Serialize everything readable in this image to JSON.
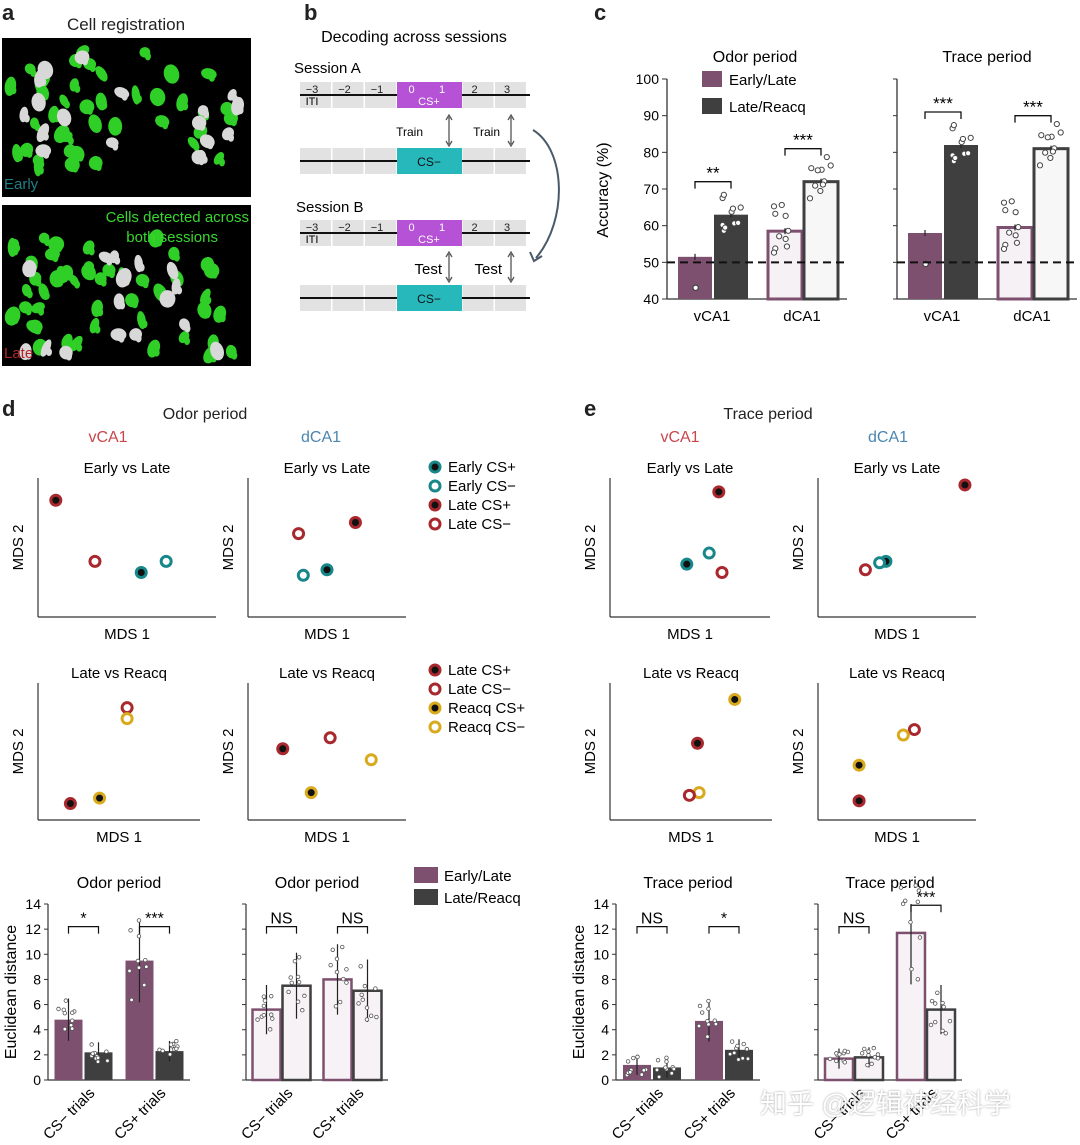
{
  "panels": {
    "a": "a",
    "b": "b",
    "c": "c",
    "d": "d",
    "e": "e"
  },
  "panel_a": {
    "title": "Cell registration",
    "early": "Early",
    "late": "Late",
    "overlay": [
      "Cells detected across",
      "both sessions"
    ]
  },
  "panel_b": {
    "title": "Decoding across sessions",
    "session_a": "Session A",
    "session_b": "Session B",
    "cs_plus": "CS+",
    "cs_minus": "CS−",
    "iti": "ITI",
    "ticks": [
      "−3",
      "−2",
      "−1",
      "0",
      "1",
      "2",
      "3"
    ],
    "train": "Train",
    "test": "Test",
    "colors": {
      "cs_plus": "#b552d6",
      "cs_minus": "#27b8bc"
    }
  },
  "panel_c": {
    "odor_title": "Odor period",
    "trace_title": "Trace period",
    "ylabel": "Accuracy (%)",
    "legend": [
      "Early/Late",
      "Late/Reacq"
    ],
    "colors": {
      "early_late": "#7e5070",
      "late_reacq": "#3f3f3f"
    }
  },
  "panel_d": {
    "title": "Odor period",
    "region_v": "vCA1",
    "region_d": "dCA1",
    "legend_top": [
      "Early CS+",
      "Early CS−",
      "Late CS+",
      "Late CS−"
    ],
    "legend_bottom": [
      "Late CS+",
      "Late CS−",
      "Reacq CS+",
      "Reacq CS−"
    ]
  },
  "panel_e": {
    "title": "Trace period",
    "region_v": "vCA1",
    "region_d": "dCA1"
  },
  "mds": {
    "early_vs_late": "Early vs Late",
    "late_vs_reacq": "Late vs Reacq",
    "x": "MDS 1",
    "y": "MDS 2",
    "colors": {
      "early": "#17878a",
      "late": "#a8282d",
      "reacq": "#d9aa1e"
    }
  },
  "dist": {
    "odor": "Odor period",
    "trace": "Trace period",
    "ylabel": "Euclidean distance",
    "legend": [
      "Early/Late",
      "Late/Reacq"
    ],
    "cats": [
      "CS− trials",
      "CS+ trials"
    ]
  },
  "watermark": "知乎 @逻辑神经科学",
  "chart_data": [
    {
      "type": "bar",
      "title": "Odor period",
      "ylabel": "Accuracy (%)",
      "ylim": [
        40,
        100
      ],
      "yticks": [
        40,
        50,
        60,
        70,
        80,
        90,
        100
      ],
      "categories": [
        "vCA1",
        "dCA1"
      ],
      "series": [
        {
          "name": "Early/Late",
          "values": [
            51.5,
            58.5
          ]
        },
        {
          "name": "Late/Reacq",
          "values": [
            63,
            72
          ]
        }
      ],
      "chance": 50,
      "sig": [
        "**",
        "***"
      ]
    },
    {
      "type": "bar",
      "title": "Trace period",
      "ylim": [
        40,
        100
      ],
      "categories": [
        "vCA1",
        "dCA1"
      ],
      "series": [
        {
          "name": "Early/Late",
          "values": [
            58,
            59.5
          ]
        },
        {
          "name": "Late/Reacq",
          "values": [
            82,
            81
          ]
        }
      ],
      "chance": 50,
      "sig": [
        "***",
        "***"
      ]
    },
    {
      "type": "scatter",
      "title": "Early vs Late",
      "region": "vCA1",
      "period": "Odor period",
      "xlabel": "MDS 1",
      "ylabel": "MDS 2",
      "points": [
        {
          "label": "Late CS+",
          "x": 0.1,
          "y": 0.84
        },
        {
          "label": "Late CS−",
          "x": 0.32,
          "y": 0.4
        },
        {
          "label": "Early CS+",
          "x": 0.58,
          "y": 0.32
        },
        {
          "label": "Early CS−",
          "x": 0.72,
          "y": 0.4
        }
      ]
    },
    {
      "type": "scatter",
      "title": "Early vs Late",
      "region": "dCA1",
      "period": "Odor period",
      "xlabel": "MDS 1",
      "ylabel": "MDS 2",
      "points": [
        {
          "label": "Late CS+",
          "x": 0.68,
          "y": 0.68
        },
        {
          "label": "Late CS−",
          "x": 0.32,
          "y": 0.6
        },
        {
          "label": "Early CS+",
          "x": 0.5,
          "y": 0.34
        },
        {
          "label": "Early CS−",
          "x": 0.35,
          "y": 0.3
        }
      ]
    },
    {
      "type": "scatter",
      "title": "Late vs Reacq",
      "region": "vCA1",
      "period": "Odor period",
      "xlabel": "MDS 1",
      "ylabel": "MDS 2",
      "points": [
        {
          "label": "Late CS−",
          "x": 0.55,
          "y": 0.82
        },
        {
          "label": "Reacq CS−",
          "x": 0.55,
          "y": 0.74
        },
        {
          "label": "Late CS+",
          "x": 0.2,
          "y": 0.12
        },
        {
          "label": "Reacq CS+",
          "x": 0.38,
          "y": 0.16
        }
      ]
    },
    {
      "type": "scatter",
      "title": "Late vs Reacq",
      "region": "dCA1",
      "period": "Odor period",
      "xlabel": "MDS 1",
      "ylabel": "MDS 2",
      "points": [
        {
          "label": "Late CS+",
          "x": 0.22,
          "y": 0.52
        },
        {
          "label": "Late CS−",
          "x": 0.52,
          "y": 0.6
        },
        {
          "label": "Reacq CS−",
          "x": 0.78,
          "y": 0.44
        },
        {
          "label": "Reacq CS+",
          "x": 0.4,
          "y": 0.2
        }
      ]
    },
    {
      "type": "scatter",
      "title": "Early vs Late",
      "region": "vCA1",
      "period": "Trace period",
      "xlabel": "MDS 1",
      "ylabel": "MDS 2",
      "points": [
        {
          "label": "Late CS+",
          "x": 0.68,
          "y": 0.9
        },
        {
          "label": "Early CS−",
          "x": 0.62,
          "y": 0.46
        },
        {
          "label": "Early CS+",
          "x": 0.48,
          "y": 0.38
        },
        {
          "label": "Late CS−",
          "x": 0.7,
          "y": 0.32
        }
      ]
    },
    {
      "type": "scatter",
      "title": "Early vs Late",
      "region": "dCA1",
      "period": "Trace period",
      "xlabel": "MDS 1",
      "ylabel": "MDS 2",
      "points": [
        {
          "label": "Late CS+",
          "x": 0.93,
          "y": 0.95
        },
        {
          "label": "Early CS+",
          "x": 0.43,
          "y": 0.4
        },
        {
          "label": "Early CS−",
          "x": 0.39,
          "y": 0.39
        },
        {
          "label": "Late CS−",
          "x": 0.3,
          "y": 0.34
        }
      ]
    },
    {
      "type": "scatter",
      "title": "Late vs Reacq",
      "region": "vCA1",
      "period": "Trace period",
      "xlabel": "MDS 1",
      "ylabel": "MDS 2",
      "points": [
        {
          "label": "Reacq CS+",
          "x": 0.77,
          "y": 0.88
        },
        {
          "label": "Late CS+",
          "x": 0.54,
          "y": 0.56
        },
        {
          "label": "Reacq CS−",
          "x": 0.55,
          "y": 0.2
        },
        {
          "label": "Late CS−",
          "x": 0.49,
          "y": 0.18
        }
      ]
    },
    {
      "type": "scatter",
      "title": "Late vs Reacq",
      "region": "dCA1",
      "period": "Trace period",
      "xlabel": "MDS 1",
      "ylabel": "MDS 2",
      "points": [
        {
          "label": "Late CS−",
          "x": 0.61,
          "y": 0.66
        },
        {
          "label": "Reacq CS−",
          "x": 0.54,
          "y": 0.62
        },
        {
          "label": "Reacq CS+",
          "x": 0.26,
          "y": 0.4
        },
        {
          "label": "Late CS+",
          "x": 0.26,
          "y": 0.14
        }
      ]
    },
    {
      "type": "bar",
      "title": "Odor period",
      "region": "vCA1",
      "ylabel": "Euclidean distance",
      "ylim": [
        0,
        14
      ],
      "yticks": [
        0,
        2,
        4,
        6,
        8,
        10,
        12,
        14
      ],
      "categories": [
        "CS− trials",
        "CS+ trials"
      ],
      "series": [
        {
          "name": "Early/Late",
          "values": [
            4.8,
            9.5
          ]
        },
        {
          "name": "Late/Reacq",
          "values": [
            2.2,
            2.3
          ]
        }
      ],
      "sig": [
        "*",
        "***"
      ]
    },
    {
      "type": "bar",
      "title": "Odor period",
      "region": "dCA1",
      "ylim": [
        0,
        14
      ],
      "categories": [
        "CS− trials",
        "CS+ trials"
      ],
      "series": [
        {
          "name": "Early/Late",
          "values": [
            5.6,
            8.0
          ]
        },
        {
          "name": "Late/Reacq",
          "values": [
            7.5,
            7.1
          ]
        }
      ],
      "sig": [
        "NS",
        "NS"
      ]
    },
    {
      "type": "bar",
      "title": "Trace period",
      "region": "vCA1",
      "ylabel": "Euclidean distance",
      "ylim": [
        0,
        14
      ],
      "yticks": [
        0,
        2,
        4,
        6,
        8,
        10,
        12,
        14
      ],
      "categories": [
        "CS− trials",
        "CS+ trials"
      ],
      "series": [
        {
          "name": "Early/Late",
          "values": [
            1.2,
            4.7
          ]
        },
        {
          "name": "Late/Reacq",
          "values": [
            1.0,
            2.4
          ]
        }
      ],
      "sig": [
        "NS",
        "*"
      ]
    },
    {
      "type": "bar",
      "title": "Trace period",
      "region": "dCA1",
      "ylim": [
        0,
        14
      ],
      "categories": [
        "CS− trials",
        "CS+ trials"
      ],
      "series": [
        {
          "name": "Early/Late",
          "values": [
            1.7,
            11.7
          ]
        },
        {
          "name": "Late/Reacq",
          "values": [
            1.8,
            5.6
          ]
        }
      ],
      "sig": [
        "NS",
        "***"
      ]
    }
  ]
}
